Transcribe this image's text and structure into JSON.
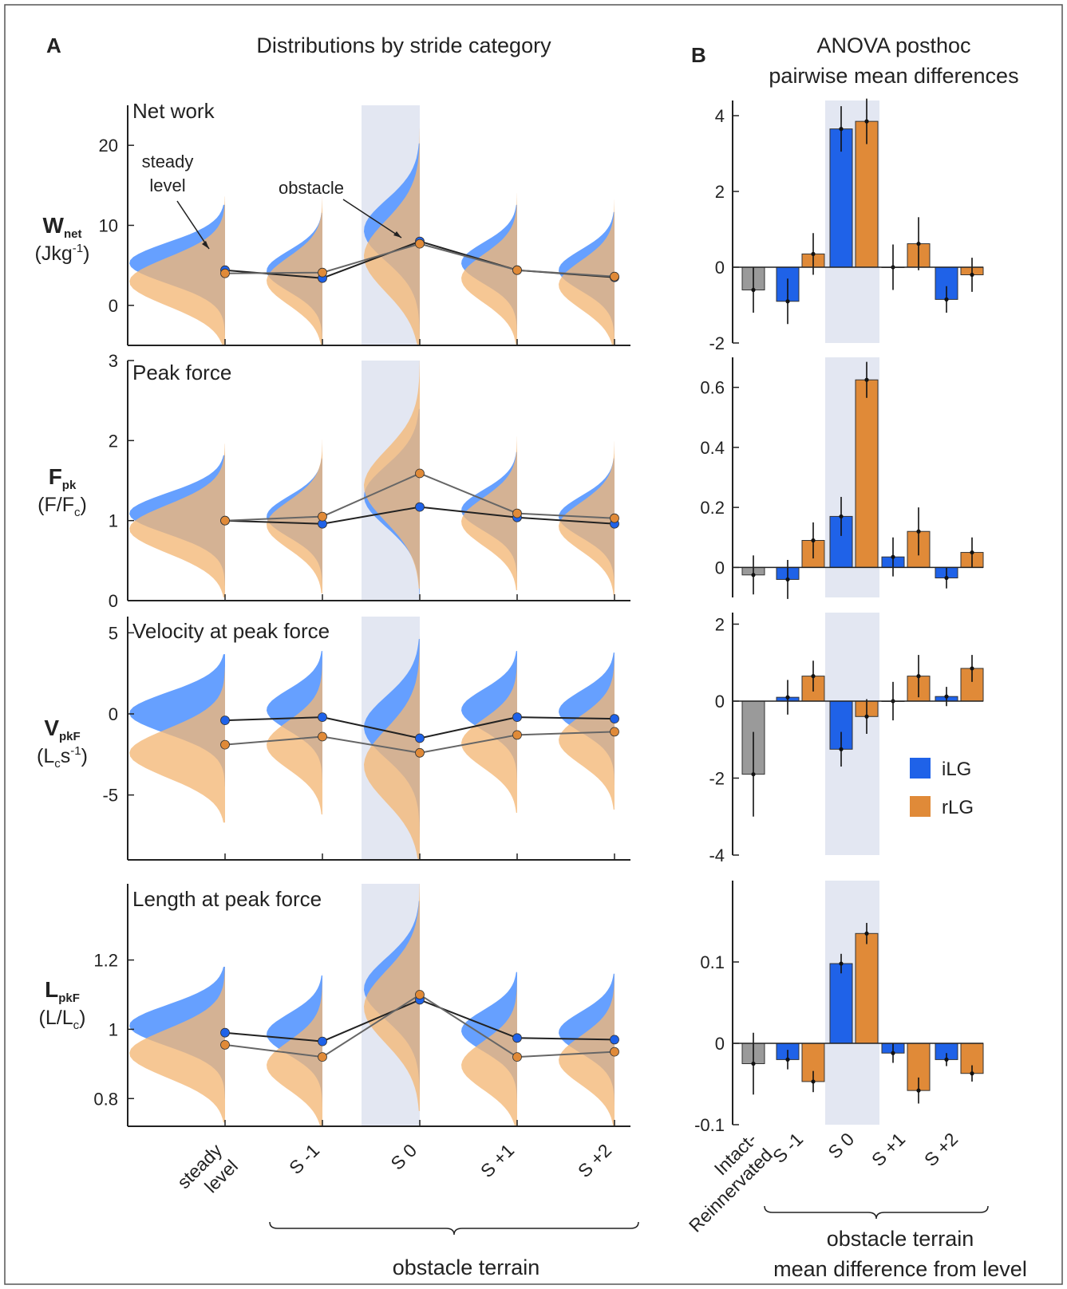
{
  "panel_a": {
    "letter": "A",
    "title": "Distributions by stride category",
    "xticks": [
      "steady\nlevel",
      "S -1",
      "S 0",
      "S +1",
      "S +2"
    ],
    "group_label": "obstacle terrain",
    "annotations": {
      "steady": "steady\nlevel",
      "obstacle": "obstacle"
    }
  },
  "panel_b": {
    "letter": "B",
    "title_line1": "ANOVA posthoc",
    "title_line2": "pairwise mean differences",
    "xticks": [
      "Intact-\nReinnervated",
      "S -1",
      "S 0",
      "S +1",
      "S +2"
    ],
    "group_label_line1": "obstacle terrain",
    "group_label_line2": "mean difference from level",
    "legend": [
      {
        "name": "iLG",
        "color": "#1f62e8"
      },
      {
        "name": "rLG",
        "color": "#e08a38"
      }
    ]
  },
  "colors": {
    "ilg": "#1f62e8",
    "rlg": "#e08a38",
    "ilg_dist": "#5e9bff",
    "rlg_dist": "#f4b776",
    "intact": "#9a9a9a",
    "shade": "#e3e7f2"
  },
  "chart_data": [
    {
      "type": "violin",
      "panel": "A",
      "title": "Net work",
      "ylabel_main": "W",
      "ylabel_sub": "net",
      "ylabel_unit": "(Jkg",
      "ylabel_unit_sup": "-1",
      "ylabel_unit_end": ")",
      "ylim": [
        -5,
        25
      ],
      "yticks": [
        0,
        10,
        20
      ],
      "categories": [
        "steady level",
        "S -1",
        "S 0",
        "S +1",
        "S +2"
      ],
      "series": [
        {
          "name": "iLG",
          "means": [
            4.4,
            3.4,
            8.0,
            4.4,
            3.5
          ]
        },
        {
          "name": "rLG",
          "means": [
            4.0,
            4.1,
            7.7,
            4.4,
            3.6
          ]
        }
      ]
    },
    {
      "type": "violin",
      "panel": "A",
      "title": "Peak force",
      "ylabel_main": "F",
      "ylabel_sub": "pk",
      "ylabel_unit": "(F/F",
      "ylabel_unit_sub": "c",
      "ylabel_unit_end": ")",
      "ylim": [
        0,
        3
      ],
      "yticks": [
        0,
        1,
        2,
        3
      ],
      "categories": [
        "steady level",
        "S -1",
        "S 0",
        "S +1",
        "S +2"
      ],
      "series": [
        {
          "name": "iLG",
          "means": [
            1.0,
            0.96,
            1.17,
            1.04,
            0.96
          ]
        },
        {
          "name": "rLG",
          "means": [
            1.0,
            1.05,
            1.59,
            1.09,
            1.03
          ]
        }
      ]
    },
    {
      "type": "violin",
      "panel": "A",
      "title": "Velocity at peak force",
      "ylabel_main": "V",
      "ylabel_sub": "pkF",
      "ylabel_unit": "(L",
      "ylabel_unit_sub": "c",
      "ylabel_unit_mid": "s",
      "ylabel_unit_sup": "-1",
      "ylabel_unit_end": ")",
      "ylim": [
        -9,
        6
      ],
      "yticks": [
        -5,
        0,
        5
      ],
      "categories": [
        "steady level",
        "S -1",
        "S 0",
        "S +1",
        "S +2"
      ],
      "series": [
        {
          "name": "iLG",
          "means": [
            -0.4,
            -0.2,
            -1.5,
            -0.2,
            -0.3
          ]
        },
        {
          "name": "rLG",
          "means": [
            -1.9,
            -1.4,
            -2.4,
            -1.3,
            -1.1
          ]
        }
      ]
    },
    {
      "type": "violin",
      "panel": "A",
      "title": "Length at peak force",
      "ylabel_main": "L",
      "ylabel_sub": "pkF",
      "ylabel_unit": "(L/L",
      "ylabel_unit_sub": "c",
      "ylabel_unit_end": ")",
      "ylim": [
        0.72,
        1.42
      ],
      "yticks": [
        0.8,
        1,
        1.2
      ],
      "categories": [
        "steady level",
        "S -1",
        "S 0",
        "S +1",
        "S +2"
      ],
      "series": [
        {
          "name": "iLG",
          "means": [
            0.99,
            0.965,
            1.085,
            0.975,
            0.97
          ]
        },
        {
          "name": "rLG",
          "means": [
            0.955,
            0.92,
            1.1,
            0.92,
            0.935
          ]
        }
      ]
    },
    {
      "type": "bar",
      "panel": "B",
      "ylim": [
        -2,
        4.4
      ],
      "yticks": [
        -2,
        0,
        2,
        4
      ],
      "bars": [
        {
          "group": "Intact-Reinnervated",
          "series": "intact",
          "value": -0.6,
          "err": 0.6
        },
        {
          "group": "S -1",
          "series": "iLG",
          "value": -0.9,
          "err": 0.6
        },
        {
          "group": "S -1",
          "series": "rLG",
          "value": 0.35,
          "err": 0.55
        },
        {
          "group": "S 0",
          "series": "iLG",
          "value": 3.65,
          "err": 0.6
        },
        {
          "group": "S 0",
          "series": "rLG",
          "value": 3.85,
          "err": 0.6
        },
        {
          "group": "S +1",
          "series": "iLG",
          "value": 0.0,
          "err": 0.6
        },
        {
          "group": "S +1",
          "series": "rLG",
          "value": 0.62,
          "err": 0.7
        },
        {
          "group": "S +2",
          "series": "iLG",
          "value": -0.85,
          "err": 0.35
        },
        {
          "group": "S +2",
          "series": "rLG",
          "value": -0.2,
          "err": 0.45
        }
      ]
    },
    {
      "type": "bar",
      "panel": "B",
      "ylim": [
        -0.1,
        0.7
      ],
      "yticks": [
        0,
        0.2,
        0.4,
        0.6
      ],
      "bars": [
        {
          "group": "Intact-Reinnervated",
          "series": "intact",
          "value": -0.025,
          "err": 0.065
        },
        {
          "group": "S -1",
          "series": "iLG",
          "value": -0.04,
          "err": 0.065
        },
        {
          "group": "S -1",
          "series": "rLG",
          "value": 0.09,
          "err": 0.06
        },
        {
          "group": "S 0",
          "series": "iLG",
          "value": 0.17,
          "err": 0.065
        },
        {
          "group": "S 0",
          "series": "rLG",
          "value": 0.625,
          "err": 0.06
        },
        {
          "group": "S +1",
          "series": "iLG",
          "value": 0.035,
          "err": 0.065
        },
        {
          "group": "S +1",
          "series": "rLG",
          "value": 0.12,
          "err": 0.08
        },
        {
          "group": "S +2",
          "series": "iLG",
          "value": -0.035,
          "err": 0.035
        },
        {
          "group": "S +2",
          "series": "rLG",
          "value": 0.05,
          "err": 0.05
        }
      ]
    },
    {
      "type": "bar",
      "panel": "B",
      "ylim": [
        -4,
        2.3
      ],
      "yticks": [
        -4,
        -2,
        0,
        2
      ],
      "bars": [
        {
          "group": "Intact-Reinnervated",
          "series": "intact",
          "value": -1.9,
          "err": 1.1
        },
        {
          "group": "S -1",
          "series": "iLG",
          "value": 0.1,
          "err": 0.45
        },
        {
          "group": "S -1",
          "series": "rLG",
          "value": 0.65,
          "err": 0.4
        },
        {
          "group": "S 0",
          "series": "iLG",
          "value": -1.25,
          "err": 0.45
        },
        {
          "group": "S 0",
          "series": "rLG",
          "value": -0.4,
          "err": 0.45
        },
        {
          "group": "S +1",
          "series": "iLG",
          "value": 0.0,
          "err": 0.5
        },
        {
          "group": "S +1",
          "series": "rLG",
          "value": 0.65,
          "err": 0.55
        },
        {
          "group": "S +2",
          "series": "iLG",
          "value": 0.12,
          "err": 0.25
        },
        {
          "group": "S +2",
          "series": "rLG",
          "value": 0.85,
          "err": 0.35
        }
      ]
    },
    {
      "type": "bar",
      "panel": "B",
      "ylim": [
        -0.1,
        0.2
      ],
      "yticks": [
        -0.1,
        0,
        0.1
      ],
      "bars": [
        {
          "group": "Intact-Reinnervated",
          "series": "intact",
          "value": -0.025,
          "err": 0.038
        },
        {
          "group": "S -1",
          "series": "iLG",
          "value": -0.02,
          "err": 0.012
        },
        {
          "group": "S -1",
          "series": "rLG",
          "value": -0.047,
          "err": 0.013
        },
        {
          "group": "S 0",
          "series": "iLG",
          "value": 0.098,
          "err": 0.012
        },
        {
          "group": "S 0",
          "series": "rLG",
          "value": 0.135,
          "err": 0.013
        },
        {
          "group": "S +1",
          "series": "iLG",
          "value": -0.012,
          "err": 0.012
        },
        {
          "group": "S +1",
          "series": "rLG",
          "value": -0.058,
          "err": 0.016
        },
        {
          "group": "S +2",
          "series": "iLG",
          "value": -0.02,
          "err": 0.008
        },
        {
          "group": "S +2",
          "series": "rLG",
          "value": -0.037,
          "err": 0.01
        }
      ]
    }
  ]
}
